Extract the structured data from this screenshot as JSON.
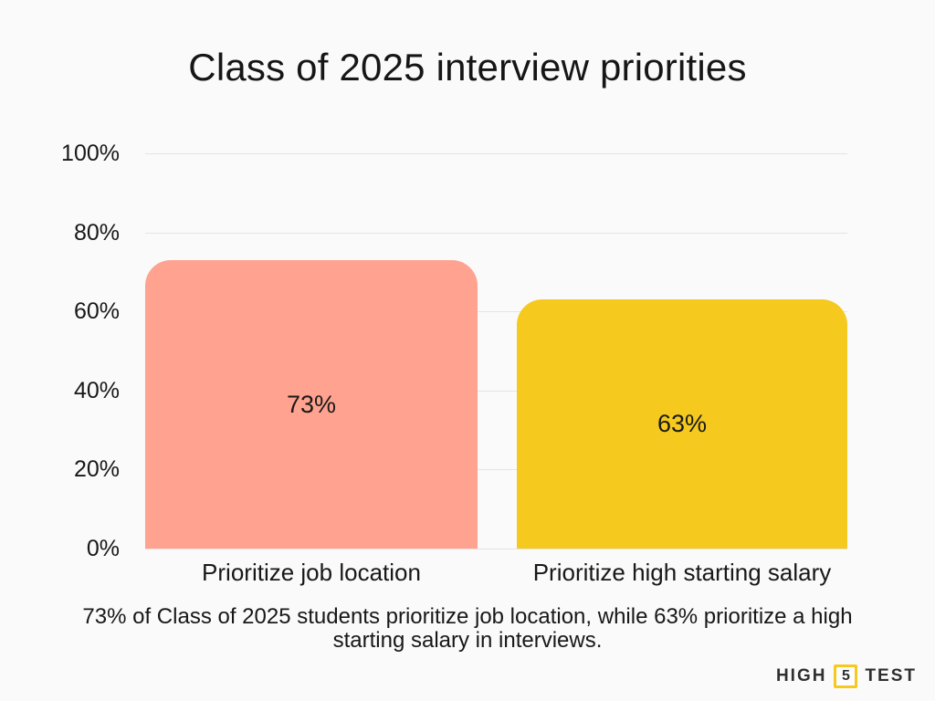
{
  "title": "Class of 2025 interview priorities",
  "chart_data": {
    "type": "bar",
    "title": "Class of 2025 interview priorities",
    "categories": [
      "Prioritize job location",
      "Prioritize high starting salary"
    ],
    "values": [
      73,
      63
    ],
    "value_labels": [
      "73%",
      "63%"
    ],
    "bar_colors": [
      "#FFA28F",
      "#F5C91E"
    ],
    "xlabel": "",
    "ylabel": "",
    "ylim": [
      0,
      100
    ],
    "yticks": [
      0,
      20,
      40,
      60,
      80,
      100
    ],
    "ytick_labels": [
      "0%",
      "20%",
      "40%",
      "60%",
      "80%",
      "100%"
    ],
    "grid": true,
    "legend": false
  },
  "caption": {
    "line1": "73% of Class of 2025 students prioritize job location, while 63% prioritize a high",
    "line2": "starting salary in interviews."
  },
  "logo": {
    "left": "HIGH",
    "number": "5",
    "right": "TEST"
  },
  "colors": {
    "background": "#FAFAFA",
    "gridline": "#E4E4E4",
    "bar_salmon": "#FFA28F",
    "bar_yellow": "#F5C91E",
    "text": "#181818",
    "logo_accent": "#F5C91E"
  }
}
